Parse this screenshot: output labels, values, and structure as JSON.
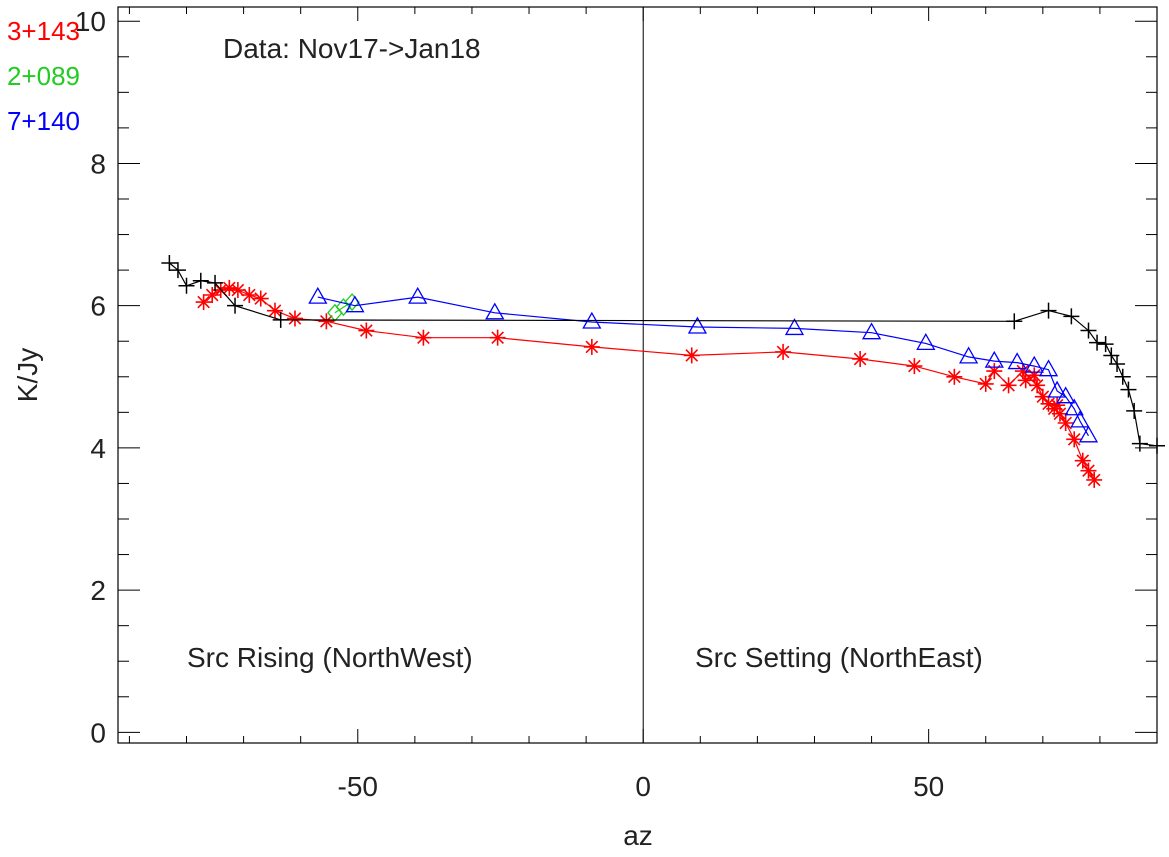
{
  "chart_data": {
    "type": "line",
    "title": "",
    "xlabel": "az",
    "ylabel": "K/Jy",
    "xlim": [
      -92,
      90
    ],
    "ylim": [
      -0.15,
      10.2
    ],
    "xticks": [
      -50,
      0,
      50
    ],
    "xtick_labels": [
      "-50",
      "0",
      "50"
    ],
    "yticks": [
      0,
      2,
      4,
      6,
      8,
      10
    ],
    "ytick_labels": [
      "0",
      "2",
      "4",
      "6",
      "8",
      "10"
    ],
    "grid": false,
    "legend_position": "top-left",
    "annotations": {
      "data_range": "Data: Nov17->Jan18",
      "rising": "Src Rising (NorthWest)",
      "setting": "Src Setting (NorthEast)"
    },
    "colors": {
      "red": "#ff0000",
      "green": "#22cc22",
      "blue": "#0000ff",
      "black": "#000000"
    },
    "series": [
      {
        "name": "3+143",
        "color": "#ff0000",
        "marker": "asterisk",
        "x": [
          -77,
          -75.5,
          -74,
          -72.5,
          -71,
          -69,
          -67,
          -64.5,
          -61,
          -55.5,
          -48.5,
          -38.5,
          -25.5,
          -9,
          8.5,
          24.5,
          38,
          47.5,
          54.5,
          60,
          61.5,
          64,
          66.5,
          67,
          68.5,
          69,
          70,
          71,
          72.5,
          72,
          73,
          74,
          75.5,
          77,
          78,
          79
        ],
        "y": [
          6.05,
          6.15,
          6.22,
          6.25,
          6.22,
          6.15,
          6.1,
          5.93,
          5.82,
          5.78,
          5.65,
          5.55,
          5.55,
          5.42,
          5.3,
          5.35,
          5.25,
          5.15,
          5.0,
          4.9,
          5.08,
          4.88,
          5.08,
          4.95,
          5.02,
          4.88,
          4.72,
          4.62,
          4.6,
          4.55,
          4.48,
          4.35,
          4.12,
          3.82,
          3.68,
          3.55
        ]
      },
      {
        "name": "2+089",
        "color": "#22cc22",
        "marker": "diamond",
        "x": [
          -54,
          -52.5,
          -51
        ],
        "y": [
          5.9,
          5.98,
          6.05
        ]
      },
      {
        "name": "7+140",
        "color": "#0000ff",
        "marker": "triangle",
        "x": [
          -57,
          -50.5,
          -39.5,
          -26,
          -9,
          9.5,
          26.5,
          40,
          49.5,
          57,
          61.5,
          65.5,
          68.5,
          71,
          72.5,
          74,
          75.5,
          76.5,
          78
        ],
        "y": [
          6.12,
          6.0,
          6.12,
          5.9,
          5.77,
          5.7,
          5.68,
          5.62,
          5.47,
          5.28,
          5.22,
          5.2,
          5.15,
          5.1,
          4.8,
          4.72,
          4.55,
          4.38,
          4.17
        ]
      },
      {
        "name": "",
        "color": "#000000",
        "marker": "plus",
        "x": [
          -83,
          -81.5,
          -80,
          -77.5,
          -75,
          -71.5,
          -63.5,
          65,
          71,
          75,
          78,
          79.5,
          81,
          82,
          83,
          84,
          85,
          86,
          87,
          90
        ],
        "y": [
          6.6,
          6.5,
          6.28,
          6.35,
          6.32,
          6.0,
          5.8,
          5.78,
          5.93,
          5.85,
          5.65,
          5.48,
          5.46,
          5.3,
          5.18,
          5.0,
          4.82,
          4.52,
          4.06,
          4.03
        ]
      }
    ]
  }
}
